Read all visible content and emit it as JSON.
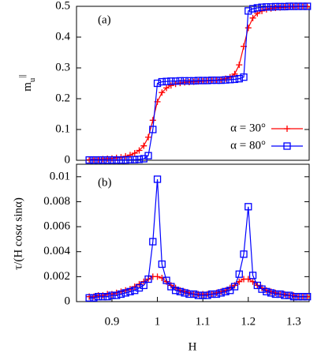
{
  "chart_data": [
    {
      "type": "line",
      "annotation": "(a)",
      "ylabel": "m",
      "ylabel_sub": "u",
      "ylabel_sup": "||",
      "x": [
        0.85,
        0.86,
        0.87,
        0.88,
        0.89,
        0.9,
        0.91,
        0.92,
        0.93,
        0.94,
        0.95,
        0.96,
        0.97,
        0.98,
        0.99,
        1.0,
        1.01,
        1.02,
        1.03,
        1.04,
        1.05,
        1.06,
        1.07,
        1.08,
        1.09,
        1.1,
        1.11,
        1.12,
        1.13,
        1.14,
        1.15,
        1.16,
        1.17,
        1.18,
        1.19,
        1.2,
        1.21,
        1.22,
        1.23,
        1.24,
        1.25,
        1.26,
        1.27,
        1.28,
        1.29,
        1.3,
        1.31,
        1.32,
        1.33
      ],
      "series": [
        {
          "name": "α = 30°",
          "color": "#ff0000",
          "marker": "plus",
          "values": [
            0.002,
            0.003,
            0.003,
            0.004,
            0.005,
            0.006,
            0.008,
            0.01,
            0.013,
            0.017,
            0.023,
            0.032,
            0.047,
            0.075,
            0.13,
            0.19,
            0.22,
            0.235,
            0.243,
            0.248,
            0.251,
            0.253,
            0.254,
            0.255,
            0.256,
            0.257,
            0.258,
            0.259,
            0.26,
            0.262,
            0.265,
            0.27,
            0.28,
            0.31,
            0.37,
            0.43,
            0.462,
            0.477,
            0.485,
            0.49,
            0.493,
            0.495,
            0.496,
            0.497,
            0.498,
            0.498,
            0.499,
            0.499,
            0.499
          ]
        },
        {
          "name": "α = 80°",
          "color": "#0000ff",
          "marker": "square",
          "values": [
            0.001,
            0.001,
            0.001,
            0.001,
            0.001,
            0.001,
            0.001,
            0.001,
            0.001,
            0.002,
            0.002,
            0.003,
            0.005,
            0.015,
            0.1,
            0.25,
            0.255,
            0.256,
            0.257,
            0.257,
            0.258,
            0.258,
            0.258,
            0.258,
            0.259,
            0.259,
            0.259,
            0.26,
            0.26,
            0.26,
            0.261,
            0.262,
            0.263,
            0.265,
            0.27,
            0.485,
            0.492,
            0.495,
            0.497,
            0.498,
            0.498,
            0.499,
            0.499,
            0.499,
            0.5,
            0.5,
            0.5,
            0.5,
            0.5
          ]
        }
      ],
      "xlim": [
        0.822,
        1.334
      ],
      "ylim": [
        0,
        0.5
      ],
      "yticks": [
        0,
        0.1,
        0.2,
        0.3,
        0.4,
        0.5
      ],
      "legend": "lower right"
    },
    {
      "type": "line",
      "annotation": "(b)",
      "ylabel": "τ/(H cosα sinα)",
      "xlabel": "H",
      "x": [
        0.85,
        0.86,
        0.87,
        0.88,
        0.89,
        0.9,
        0.91,
        0.92,
        0.93,
        0.94,
        0.95,
        0.96,
        0.97,
        0.98,
        0.99,
        1.0,
        1.01,
        1.02,
        1.03,
        1.04,
        1.05,
        1.06,
        1.07,
        1.08,
        1.09,
        1.1,
        1.11,
        1.12,
        1.13,
        1.14,
        1.15,
        1.16,
        1.17,
        1.18,
        1.19,
        1.2,
        1.21,
        1.22,
        1.23,
        1.24,
        1.25,
        1.26,
        1.27,
        1.28,
        1.29,
        1.3,
        1.31,
        1.32,
        1.33
      ],
      "series": [
        {
          "color": "#ff0000",
          "marker": "plus",
          "values": [
            0.0004,
            0.0004,
            0.0005,
            0.0005,
            0.0006,
            0.0006,
            0.0007,
            0.0008,
            0.0009,
            0.001,
            0.0012,
            0.0014,
            0.0016,
            0.0018,
            0.002,
            0.002,
            0.0019,
            0.0016,
            0.0013,
            0.0011,
            0.0009,
            0.0008,
            0.0007,
            0.0006,
            0.0006,
            0.0006,
            0.0006,
            0.0006,
            0.0007,
            0.0008,
            0.0009,
            0.0011,
            0.0013,
            0.0016,
            0.0018,
            0.0018,
            0.0016,
            0.0013,
            0.0011,
            0.0009,
            0.0008,
            0.0007,
            0.0006,
            0.0006,
            0.0005,
            0.0005,
            0.0004,
            0.0004,
            0.0004
          ]
        },
        {
          "color": "#0000ff",
          "marker": "square",
          "values": [
            0.0003,
            0.0003,
            0.0004,
            0.0004,
            0.0004,
            0.0005,
            0.0005,
            0.0006,
            0.0007,
            0.0008,
            0.0009,
            0.0011,
            0.0013,
            0.0018,
            0.0048,
            0.0098,
            0.003,
            0.0017,
            0.0012,
            0.0009,
            0.0008,
            0.0007,
            0.0006,
            0.0006,
            0.0005,
            0.0005,
            0.0005,
            0.0006,
            0.0006,
            0.0007,
            0.0008,
            0.0009,
            0.0012,
            0.0022,
            0.0038,
            0.0076,
            0.0021,
            0.0013,
            0.001,
            0.0008,
            0.0007,
            0.0006,
            0.0006,
            0.0005,
            0.0005,
            0.0004,
            0.0004,
            0.0004,
            0.0004
          ]
        }
      ],
      "xlim": [
        0.822,
        1.334
      ],
      "ylim": [
        0,
        0.011
      ],
      "xticks": [
        0.9,
        1,
        1.1,
        1.2,
        1.3
      ],
      "yticks": [
        0,
        0.002,
        0.004,
        0.006,
        0.008,
        0.01
      ]
    }
  ]
}
